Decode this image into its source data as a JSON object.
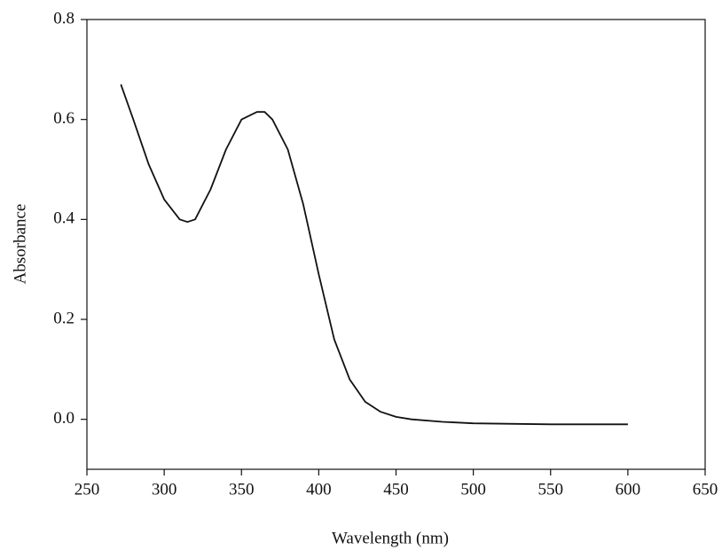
{
  "chart_data": {
    "type": "line",
    "x_label": "Wavelength (nm)",
    "y_label": "Absorbance",
    "x": [
      272,
      280,
      290,
      300,
      310,
      315,
      320,
      330,
      340,
      350,
      360,
      365,
      370,
      380,
      390,
      400,
      410,
      420,
      430,
      440,
      450,
      460,
      480,
      500,
      550,
      600
    ],
    "series": [
      {
        "color": "#111111",
        "values": [
          0.67,
          0.6,
          0.51,
          0.44,
          0.4,
          0.395,
          0.4,
          0.46,
          0.54,
          0.6,
          0.615,
          0.615,
          0.6,
          0.54,
          0.43,
          0.29,
          0.16,
          0.08,
          0.035,
          0.015,
          0.005,
          0.0,
          -0.005,
          -0.008,
          -0.01,
          -0.01
        ]
      }
    ],
    "xlim": [
      250,
      650
    ],
    "xticks": [
      250,
      300,
      350,
      400,
      450,
      500,
      550,
      600,
      650
    ],
    "ylim": [
      -0.1,
      0.8
    ],
    "yticks": [
      {
        "value": 0,
        "label": "0.0"
      },
      0.2,
      0.4,
      0.6,
      0.8
    ]
  }
}
